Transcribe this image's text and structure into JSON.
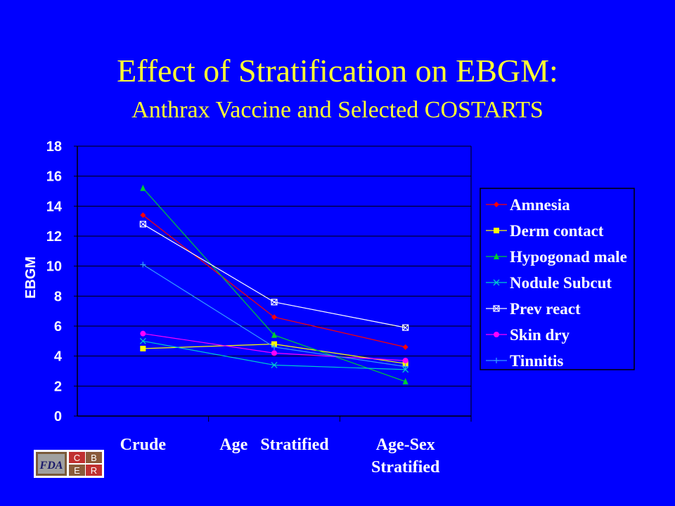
{
  "slide": {
    "title": "Effect of Stratification on EBGM:",
    "subtitle": "Anthrax Vaccine and Selected COSTARTS",
    "logo_text": {
      "left": "FDA",
      "right": [
        "C",
        "B",
        "E",
        "R"
      ]
    }
  },
  "chart_data": {
    "type": "line",
    "categories": [
      "Crude",
      "Age Stratified",
      "Age-Sex Stratified"
    ],
    "category_label_lines": [
      [
        "Crude"
      ],
      [
        "Age   Stratified"
      ],
      [
        "Age-Sex",
        "Stratified"
      ]
    ],
    "ylabel": "EBGM",
    "xlabel": "",
    "ylim": [
      0,
      18
    ],
    "yticks": [
      0,
      2,
      4,
      6,
      8,
      10,
      12,
      14,
      16,
      18
    ],
    "grid": true,
    "legend_position": "right",
    "series": [
      {
        "name": "Amnesia",
        "color": "#ff0000",
        "marker": "diamond",
        "values": [
          13.4,
          6.6,
          4.6
        ]
      },
      {
        "name": "Derm contact",
        "color": "#ffff00",
        "marker": "square",
        "values": [
          4.5,
          4.8,
          3.5
        ]
      },
      {
        "name": "Hypogonad male",
        "color": "#00cc33",
        "marker": "triangle",
        "values": [
          15.2,
          5.4,
          2.3
        ]
      },
      {
        "name": "Nodule Subcut",
        "color": "#00cccc",
        "marker": "x",
        "values": [
          5.0,
          3.4,
          3.1
        ]
      },
      {
        "name": "Prev react",
        "color": "#ffffff",
        "marker": "boxx",
        "values": [
          12.8,
          7.6,
          5.9
        ]
      },
      {
        "name": "Skin dry",
        "color": "#ff00ff",
        "marker": "circle",
        "values": [
          5.5,
          4.2,
          3.7
        ]
      },
      {
        "name": "Tinnitis",
        "color": "#3399ff",
        "marker": "plus",
        "values": [
          10.1,
          4.6,
          3.3
        ]
      }
    ]
  }
}
